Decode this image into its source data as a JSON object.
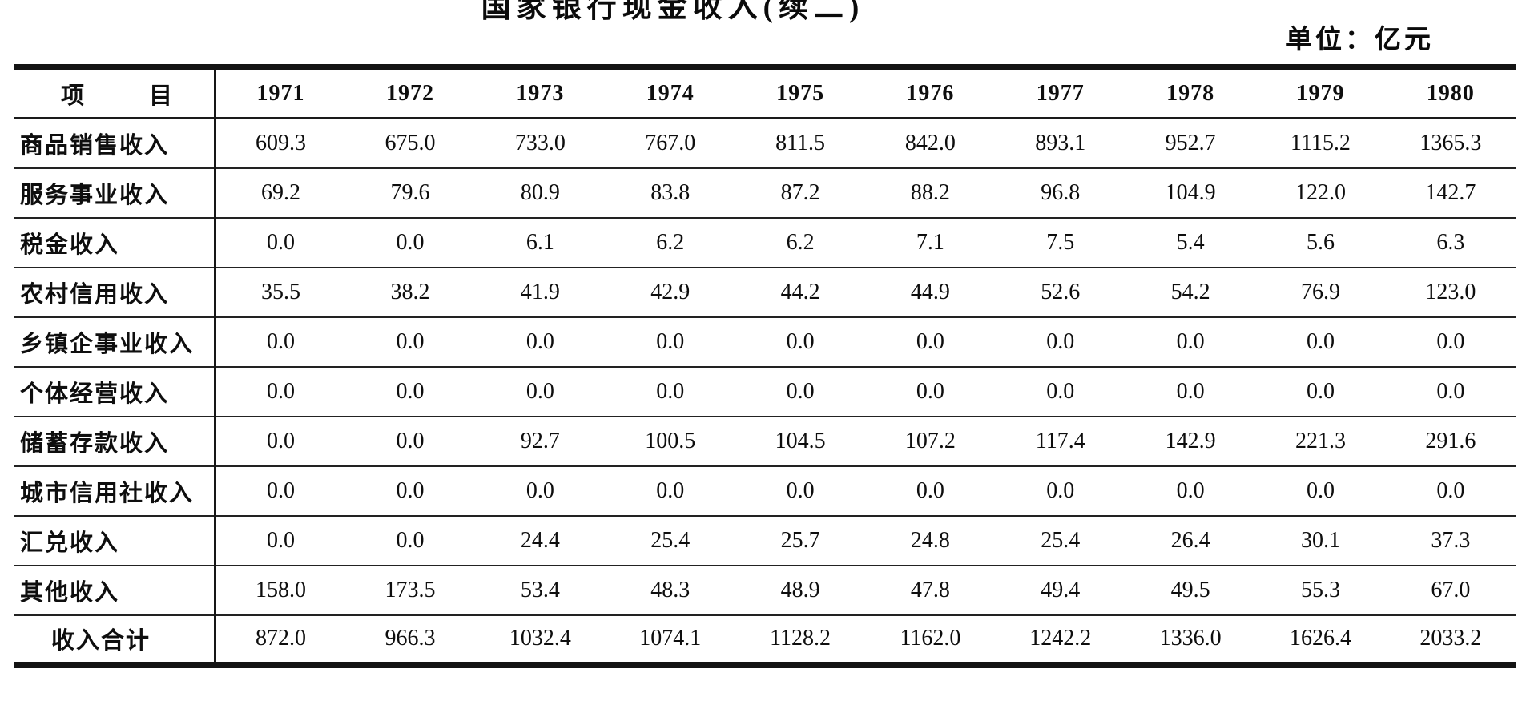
{
  "page": {
    "title": "国家银行现金收入(续二)",
    "unit_label": "单位：亿元"
  },
  "table": {
    "header": {
      "item_col": "项　目",
      "years": [
        "1971",
        "1972",
        "1973",
        "1974",
        "1975",
        "1976",
        "1977",
        "1978",
        "1979",
        "1980"
      ]
    },
    "rows": [
      {
        "label": "商品销售收入",
        "total": false,
        "values": [
          "609.3",
          "675.0",
          "733.0",
          "767.0",
          "811.5",
          "842.0",
          "893.1",
          "952.7",
          "1115.2",
          "1365.3"
        ]
      },
      {
        "label": "服务事业收入",
        "total": false,
        "values": [
          "69.2",
          "79.6",
          "80.9",
          "83.8",
          "87.2",
          "88.2",
          "96.8",
          "104.9",
          "122.0",
          "142.7"
        ]
      },
      {
        "label": "税金收入",
        "total": false,
        "values": [
          "0.0",
          "0.0",
          "6.1",
          "6.2",
          "6.2",
          "7.1",
          "7.5",
          "5.4",
          "5.6",
          "6.3"
        ]
      },
      {
        "label": "农村信用收入",
        "total": false,
        "values": [
          "35.5",
          "38.2",
          "41.9",
          "42.9",
          "44.2",
          "44.9",
          "52.6",
          "54.2",
          "76.9",
          "123.0"
        ]
      },
      {
        "label": "乡镇企事业收入",
        "total": false,
        "values": [
          "0.0",
          "0.0",
          "0.0",
          "0.0",
          "0.0",
          "0.0",
          "0.0",
          "0.0",
          "0.0",
          "0.0"
        ]
      },
      {
        "label": "个体经营收入",
        "total": false,
        "values": [
          "0.0",
          "0.0",
          "0.0",
          "0.0",
          "0.0",
          "0.0",
          "0.0",
          "0.0",
          "0.0",
          "0.0"
        ]
      },
      {
        "label": "储蓄存款收入",
        "total": false,
        "values": [
          "0.0",
          "0.0",
          "92.7",
          "100.5",
          "104.5",
          "107.2",
          "117.4",
          "142.9",
          "221.3",
          "291.6"
        ]
      },
      {
        "label": "城市信用社收入",
        "total": false,
        "values": [
          "0.0",
          "0.0",
          "0.0",
          "0.0",
          "0.0",
          "0.0",
          "0.0",
          "0.0",
          "0.0",
          "0.0"
        ]
      },
      {
        "label": "汇兑收入",
        "total": false,
        "values": [
          "0.0",
          "0.0",
          "24.4",
          "25.4",
          "25.7",
          "24.8",
          "25.4",
          "26.4",
          "30.1",
          "37.3"
        ]
      },
      {
        "label": "其他收入",
        "total": false,
        "values": [
          "158.0",
          "173.5",
          "53.4",
          "48.3",
          "48.9",
          "47.8",
          "49.4",
          "49.5",
          "55.3",
          "67.0"
        ]
      },
      {
        "label": "收入合计",
        "total": true,
        "values": [
          "872.0",
          "966.3",
          "1032.4",
          "1074.1",
          "1128.2",
          "1162.0",
          "1242.2",
          "1336.0",
          "1626.4",
          "2033.2"
        ]
      }
    ]
  }
}
